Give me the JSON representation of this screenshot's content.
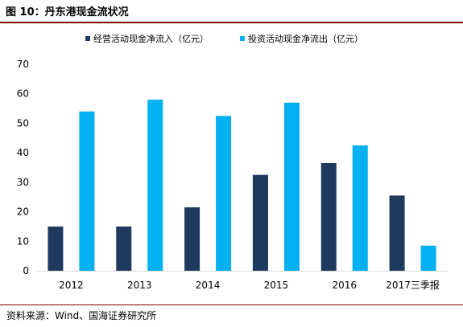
{
  "header": {
    "title": "图 10：丹东港现金流状况"
  },
  "footer": {
    "source": "资料来源：Wind、国海证券研究所"
  },
  "chart_data": {
    "type": "bar",
    "title": "",
    "xlabel": "",
    "ylabel": "",
    "categories": [
      "2012",
      "2013",
      "2014",
      "2015",
      "2016",
      "2017三季报"
    ],
    "series": [
      {
        "name": "经营活动现金净流入（亿元）",
        "color": "#1f3a5f",
        "values": [
          15,
          15,
          21.5,
          32.5,
          36.5,
          25.5
        ]
      },
      {
        "name": "投资活动现金净流出（亿元）",
        "color": "#00b0f0",
        "values": [
          54,
          58,
          52.5,
          57,
          42.5,
          8.5
        ]
      }
    ],
    "ylim": [
      0,
      70
    ],
    "yticks": [
      0,
      10,
      20,
      30,
      40,
      50,
      60,
      70
    ],
    "grid": false,
    "legend": "top"
  }
}
